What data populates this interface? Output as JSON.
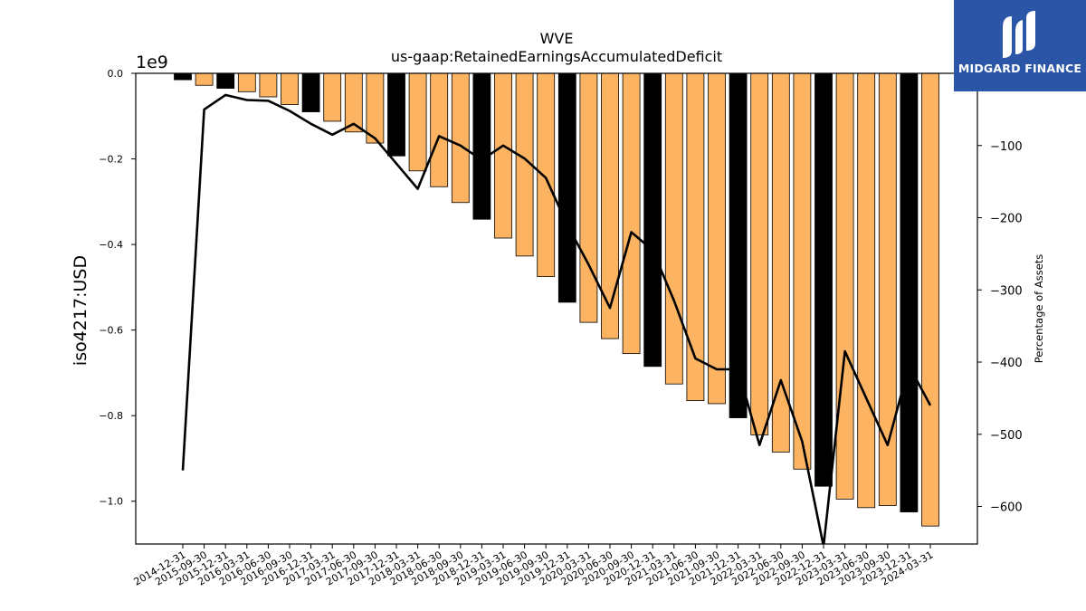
{
  "brand": {
    "name": "MIDGARD FINANCE",
    "color": "#2b55a6"
  },
  "chart_data": {
    "type": "bar",
    "title": "WVE",
    "subtitle": "us-gaap:RetainedEarningsAccumulatedDeficit",
    "ylabel": "iso4217:USD",
    "y_scale_label": "1e9",
    "y2label": "Percentage of Assets",
    "categories": [
      "2014-12-31",
      "2015-09-30",
      "2015-12-31",
      "2016-03-31",
      "2016-06-30",
      "2016-09-30",
      "2016-12-31",
      "2017-03-31",
      "2017-06-30",
      "2017-09-30",
      "2017-12-31",
      "2018-03-31",
      "2018-06-30",
      "2018-09-30",
      "2018-12-31",
      "2019-03-31",
      "2019-06-30",
      "2019-09-30",
      "2019-12-31",
      "2020-03-31",
      "2020-06-30",
      "2020-09-30",
      "2020-12-31",
      "2021-03-31",
      "2021-06-30",
      "2021-09-30",
      "2021-12-31",
      "2022-03-31",
      "2022-06-30",
      "2022-09-30",
      "2022-12-31",
      "2023-03-31",
      "2023-06-30",
      "2023-09-30",
      "2023-12-31",
      "2024-03-31"
    ],
    "series": [
      {
        "axis": "left",
        "type": "bar",
        "unit": "1e9 USD",
        "values": [
          -0.015,
          -0.028,
          -0.035,
          -0.043,
          -0.055,
          -0.073,
          -0.09,
          -0.112,
          -0.137,
          -0.163,
          -0.193,
          -0.228,
          -0.265,
          -0.302,
          -0.341,
          -0.385,
          -0.427,
          -0.475,
          -0.535,
          -0.582,
          -0.62,
          -0.655,
          -0.685,
          -0.726,
          -0.765,
          -0.772,
          -0.805,
          -0.845,
          -0.885,
          -0.925,
          -0.965,
          -0.995,
          -1.015,
          -1.01,
          -1.025,
          -1.058
        ],
        "colors": [
          "#000000",
          "#fdb462",
          "#000000",
          "#fdb462",
          "#fdb462",
          "#fdb462",
          "#000000",
          "#fdb462",
          "#fdb462",
          "#fdb462",
          "#000000",
          "#fdb462",
          "#fdb462",
          "#fdb462",
          "#000000",
          "#fdb462",
          "#fdb462",
          "#fdb462",
          "#000000",
          "#fdb462",
          "#fdb462",
          "#fdb462",
          "#000000",
          "#fdb462",
          "#fdb462",
          "#fdb462",
          "#000000",
          "#fdb462",
          "#fdb462",
          "#fdb462",
          "#000000",
          "#fdb462",
          "#fdb462",
          "#fdb462",
          "#000000",
          "#fdb462"
        ]
      },
      {
        "axis": "right",
        "type": "line",
        "color": "#000000",
        "values": [
          -550,
          -50,
          -30,
          -37,
          -38,
          -52,
          -70,
          -85,
          -70,
          -90,
          -125,
          -160,
          -87,
          -100,
          -120,
          -100,
          -118,
          -145,
          -210,
          -265,
          -325,
          -220,
          -245,
          -315,
          -395,
          -410,
          -410,
          -515,
          -425,
          -510,
          -655,
          -385,
          -450,
          -515,
          -405,
          -460
        ]
      }
    ],
    "ylim": [
      -1.1,
      0.0
    ],
    "yticks": [
      0.0,
      -0.2,
      -0.4,
      -0.6,
      -0.8,
      -1.0
    ],
    "ytick_labels": [
      "0.0",
      "−0.2",
      "−0.4",
      "−0.6",
      "−0.8",
      "−1.0"
    ],
    "y2lim": [
      -652,
      0
    ],
    "y2ticks": [
      -100,
      -200,
      -300,
      -400,
      -500,
      -600
    ],
    "y2tick_labels": [
      "−100",
      "−200",
      "−300",
      "−400",
      "−500",
      "−600"
    ],
    "grid": false,
    "legend": "none"
  }
}
